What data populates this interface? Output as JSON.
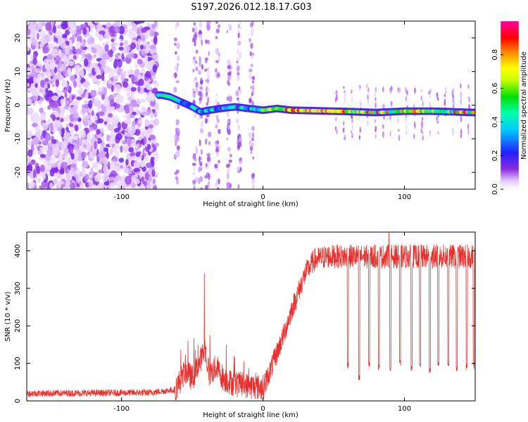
{
  "title": "S197.2026.012.18.17.G03",
  "chart_data": [
    {
      "type": "heatmap",
      "name": "spectrogram",
      "xlabel": "Height of straight line (km)",
      "ylabel": "Frequency (Hz)",
      "xlim": [
        -167,
        150
      ],
      "ylim": [
        -25,
        25
      ],
      "xticks": [
        -100,
        0,
        100
      ],
      "yticks": [
        -20,
        -10,
        0,
        10,
        20
      ],
      "colorbar": {
        "label": "Normalized spectral amplitude",
        "range": [
          0,
          1
        ],
        "ticks": [
          "0.0",
          "0.2",
          "0.4",
          "0.6",
          "0.8"
        ],
        "tick_values": [
          0,
          0.2,
          0.4,
          0.6,
          0.8
        ],
        "colormap": "rainbow (white-violet-blue-cyan-green-yellow-red-magenta)"
      },
      "ridge_path": [
        {
          "x": -72,
          "y": 3.0
        },
        {
          "x": -66,
          "y": 2.5
        },
        {
          "x": -58,
          "y": 1.0
        },
        {
          "x": -50,
          "y": -0.5
        },
        {
          "x": -44,
          "y": -2.0
        },
        {
          "x": -38,
          "y": -1.5
        },
        {
          "x": -30,
          "y": -1.0
        },
        {
          "x": -20,
          "y": -0.5
        },
        {
          "x": -10,
          "y": -1.0
        },
        {
          "x": 0,
          "y": -1.5
        },
        {
          "x": 10,
          "y": -1.0
        },
        {
          "x": 20,
          "y": -1.5
        },
        {
          "x": 40,
          "y": -1.7
        },
        {
          "x": 60,
          "y": -1.9
        },
        {
          "x": 80,
          "y": -2.2
        },
        {
          "x": 100,
          "y": -1.8
        },
        {
          "x": 120,
          "y": -1.8
        },
        {
          "x": 150,
          "y": -2.2
        }
      ],
      "noise_region": {
        "x_from": -167,
        "x_to": -75
      }
    },
    {
      "type": "line",
      "name": "snr",
      "xlabel": "Height of straight line (km)",
      "ylabel": "SNR (10 * v/v)",
      "xlim": [
        -167,
        150
      ],
      "ylim": [
        0,
        450
      ],
      "xticks": [
        -100,
        0,
        100
      ],
      "yticks": [
        0,
        100,
        200,
        300,
        400
      ],
      "color": "#e8312d",
      "envelope": [
        {
          "x": -167,
          "y": 20
        },
        {
          "x": -80,
          "y": 22
        },
        {
          "x": -62,
          "y": 30
        },
        {
          "x": -55,
          "y": 80
        },
        {
          "x": -50,
          "y": 60
        },
        {
          "x": -45,
          "y": 100
        },
        {
          "x": -41,
          "y": 140
        },
        {
          "x": -38,
          "y": 70
        },
        {
          "x": -33,
          "y": 90
        },
        {
          "x": -28,
          "y": 60
        },
        {
          "x": -20,
          "y": 45
        },
        {
          "x": -10,
          "y": 40
        },
        {
          "x": 0,
          "y": 35
        },
        {
          "x": 5,
          "y": 80
        },
        {
          "x": 10,
          "y": 130
        },
        {
          "x": 15,
          "y": 180
        },
        {
          "x": 20,
          "y": 240
        },
        {
          "x": 25,
          "y": 290
        },
        {
          "x": 30,
          "y": 340
        },
        {
          "x": 36,
          "y": 375
        },
        {
          "x": 45,
          "y": 385
        },
        {
          "x": 60,
          "y": 385
        },
        {
          "x": 150,
          "y": 385
        }
      ],
      "spikes": [
        {
          "x": -41.5,
          "y": 340
        },
        {
          "x": -53,
          "y": 160
        },
        {
          "x": -37.5,
          "y": 175
        },
        {
          "x": -46,
          "y": 150
        },
        {
          "x": -26,
          "y": 150
        },
        {
          "x": 89,
          "y": 450
        }
      ],
      "dropouts": [
        {
          "x": 60,
          "y": 95
        },
        {
          "x": 68,
          "y": 60
        },
        {
          "x": 75,
          "y": 100
        },
        {
          "x": 82,
          "y": 90
        },
        {
          "x": 90,
          "y": 90
        },
        {
          "x": 97,
          "y": 100
        },
        {
          "x": 105,
          "y": 90
        },
        {
          "x": 111,
          "y": 95
        },
        {
          "x": 118,
          "y": 80
        },
        {
          "x": 124,
          "y": 95
        },
        {
          "x": 131,
          "y": 100
        },
        {
          "x": 137,
          "y": 85
        },
        {
          "x": 144,
          "y": 90
        },
        {
          "x": 149,
          "y": 95
        }
      ]
    }
  ]
}
